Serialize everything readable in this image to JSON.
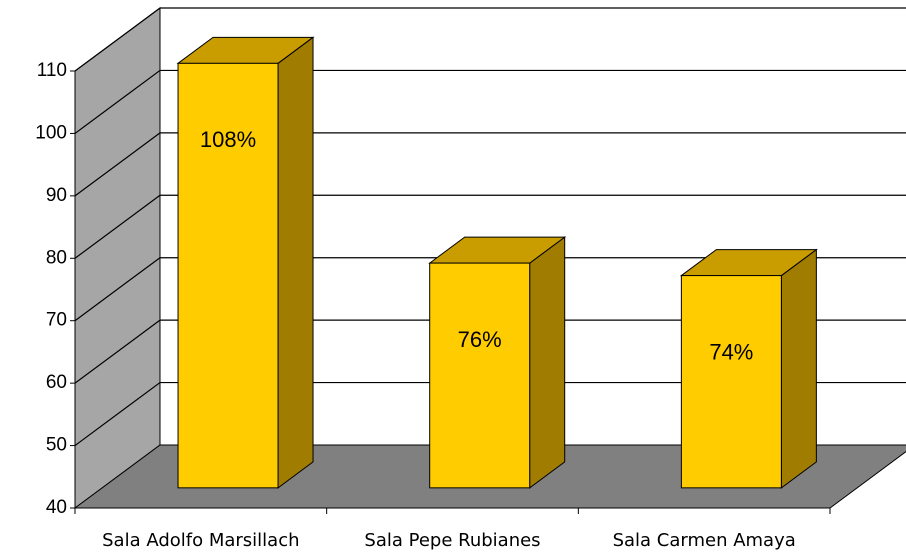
{
  "chart_data": {
    "type": "bar3d",
    "categories": [
      "Sala Adolfo Marsillach",
      "Sala Pepe Rubianes",
      "Sala Carmen Amaya"
    ],
    "values": [
      108,
      76,
      74
    ],
    "value_labels": [
      "108%",
      "76%",
      "74%"
    ],
    "color": "#ffcc00",
    "ylim": [
      40,
      110
    ],
    "yticks": [
      40,
      50,
      60,
      70,
      80,
      90,
      100,
      110
    ],
    "grid": true
  }
}
